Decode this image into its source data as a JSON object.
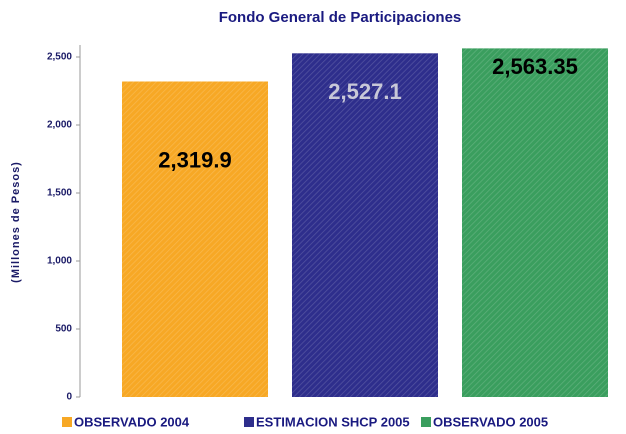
{
  "chart_data": {
    "type": "bar",
    "title": "Fondo General de Participaciones",
    "y_label": "(Millones de Pesos)",
    "categories": [
      "OBSERVADO 2004",
      "ESTIMACION SHCP 2005",
      "OBSERVADO 2005"
    ],
    "values": [
      2319.9,
      2527.1,
      2563.35
    ],
    "value_labels": [
      "2,319.9",
      "2,527.1",
      "2,563.35"
    ],
    "colors": [
      "#f7a825",
      "#2e2e8c",
      "#3a9e5e"
    ],
    "ylim": [
      0,
      2600
    ],
    "yticks": [
      0,
      500,
      {
        "value": 1000,
        "label": "1,000"
      },
      {
        "value": 1500,
        "label": "1,500"
      },
      {
        "value": 2000,
        "label": "2,000"
      },
      {
        "value": 2500,
        "label": "2,500"
      }
    ],
    "grid": false
  }
}
